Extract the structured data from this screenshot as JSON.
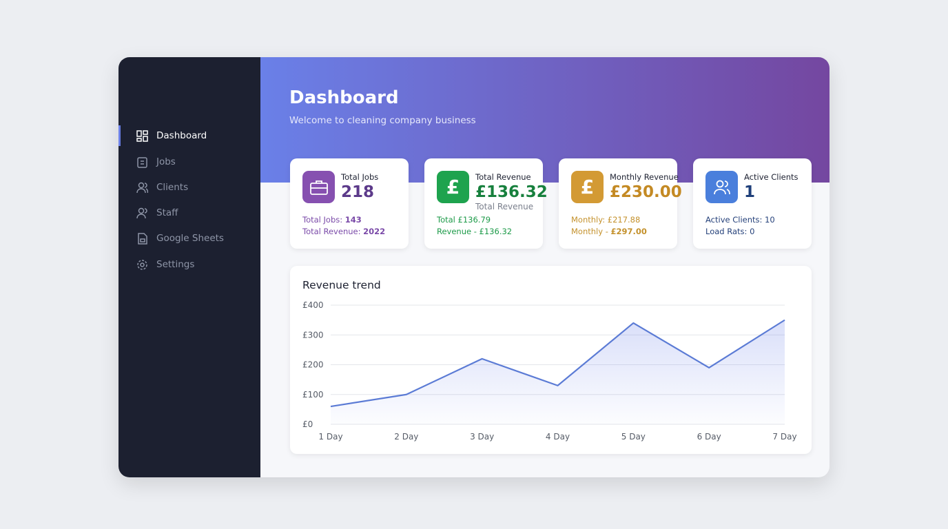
{
  "sidebar": {
    "items": [
      "Dashboard",
      "Jobs",
      "Clients",
      "Staff",
      "Google Sheets",
      "Settings"
    ]
  },
  "header": {
    "title": "Dashboard",
    "subtitle": "Welcome to cleaning company business"
  },
  "stats": [
    {
      "label": "Total Jobs",
      "value": "218",
      "lines": [
        {
          "label": "Total Jobs:",
          "value": "143"
        },
        {
          "label": "Total Revenue:",
          "value": "2022"
        }
      ]
    },
    {
      "label": "Total Revenue",
      "icon": "£",
      "value": "£136.32",
      "sub": "Total Revenue",
      "lines": [
        {
          "label": "Total",
          "value": "£136.79"
        },
        {
          "label": "Revenue -",
          "value": "£136.32"
        }
      ]
    },
    {
      "label": "Monthly Revenue",
      "icon": "£",
      "value": "£230.00",
      "lines": [
        {
          "label": "Monthly:",
          "value": "£217.88"
        },
        {
          "label": "Monthly -",
          "value": "£297.00"
        }
      ]
    },
    {
      "label": "Active Clients",
      "value": "1",
      "lines": [
        {
          "label": "Active Clients:",
          "value": "10"
        },
        {
          "label": "Load Rats:",
          "value": "0"
        }
      ]
    }
  ],
  "chart_data": {
    "type": "line",
    "title": "Revenue trend",
    "categories": [
      "1 Day",
      "2 Day",
      "3 Day",
      "4 Day",
      "5 Day",
      "6 Day",
      "7 Day"
    ],
    "series": [
      {
        "color": "#5b7bd5",
        "values": [
          60,
          100,
          220,
          130,
          340,
          190,
          350
        ]
      }
    ],
    "ylim": [
      0,
      400
    ],
    "yticks": [
      {
        "value": 0,
        "label": "£0"
      },
      {
        "value": 100,
        "label": "£100"
      },
      {
        "value": 200,
        "label": "£200"
      },
      {
        "value": 300,
        "label": "£300"
      },
      {
        "value": 400,
        "label": "£400"
      }
    ],
    "grid": true
  }
}
